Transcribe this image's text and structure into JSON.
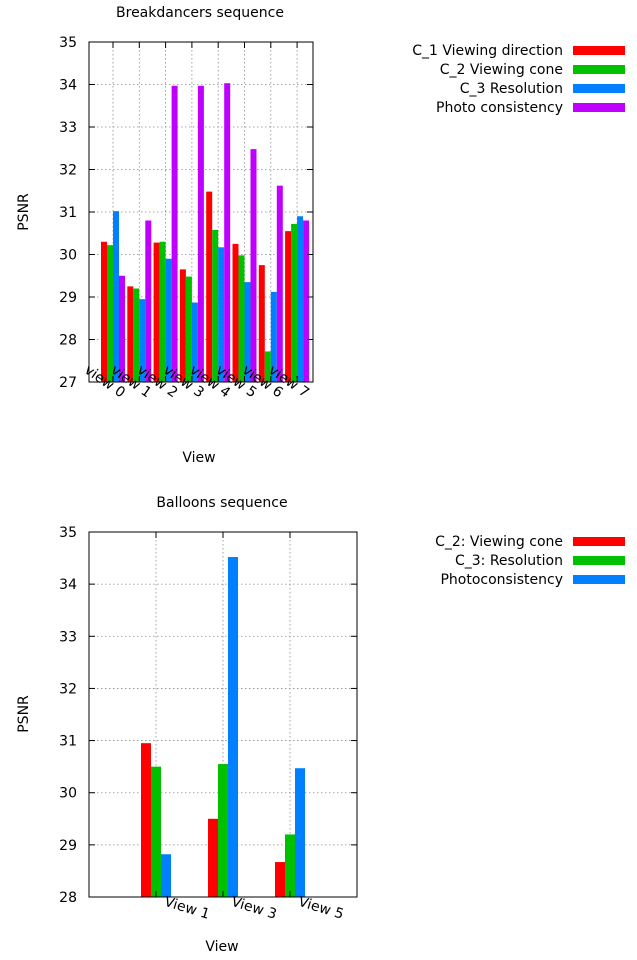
{
  "chart_data": [
    {
      "type": "bar",
      "title": "Breakdancers sequence",
      "xlabel": "View",
      "ylabel": "PSNR",
      "ylim": [
        27,
        35
      ],
      "yticks": [
        27,
        28,
        29,
        30,
        31,
        32,
        33,
        34,
        35
      ],
      "categories": [
        "view 0",
        "view 1",
        "view 2",
        "view 3",
        "view 4",
        "view 5",
        "view 6",
        "view 7"
      ],
      "grid": true,
      "legend_position": "right",
      "series": [
        {
          "name": "C_1 Viewing direction",
          "color": "#ff0000",
          "values": [
            30.3,
            29.25,
            30.28,
            29.65,
            31.48,
            30.25,
            29.75,
            30.55
          ]
        },
        {
          "name": "C_2 Viewing cone",
          "color": "#00c000",
          "values": [
            30.22,
            29.2,
            30.3,
            29.48,
            30.58,
            29.98,
            27.72,
            30.72
          ]
        },
        {
          "name": "C_3 Resolution",
          "color": "#0080ff",
          "values": [
            31.02,
            28.95,
            29.9,
            28.87,
            30.17,
            29.35,
            29.12,
            30.9
          ]
        },
        {
          "name": "Photo consistency",
          "color": "#c000ff",
          "values": [
            29.5,
            30.8,
            33.97,
            33.97,
            34.03,
            32.48,
            31.62,
            30.8
          ]
        }
      ]
    },
    {
      "type": "bar",
      "title": "Balloons sequence",
      "xlabel": "View",
      "ylabel": "PSNR",
      "ylim": [
        28,
        35
      ],
      "yticks": [
        28,
        29,
        30,
        31,
        32,
        33,
        34,
        35
      ],
      "categories": [
        "View 1",
        "View 3",
        "View 5"
      ],
      "grid": true,
      "legend_position": "right",
      "series": [
        {
          "name": "C_2: Viewing cone",
          "color": "#ff0000",
          "values": [
            30.95,
            29.5,
            28.67
          ]
        },
        {
          "name": "C_3: Resolution",
          "color": "#00c000",
          "values": [
            30.5,
            30.55,
            29.2
          ]
        },
        {
          "name": "Photoconsistency",
          "color": "#0080ff",
          "values": [
            28.82,
            34.52,
            30.47
          ]
        }
      ]
    }
  ]
}
